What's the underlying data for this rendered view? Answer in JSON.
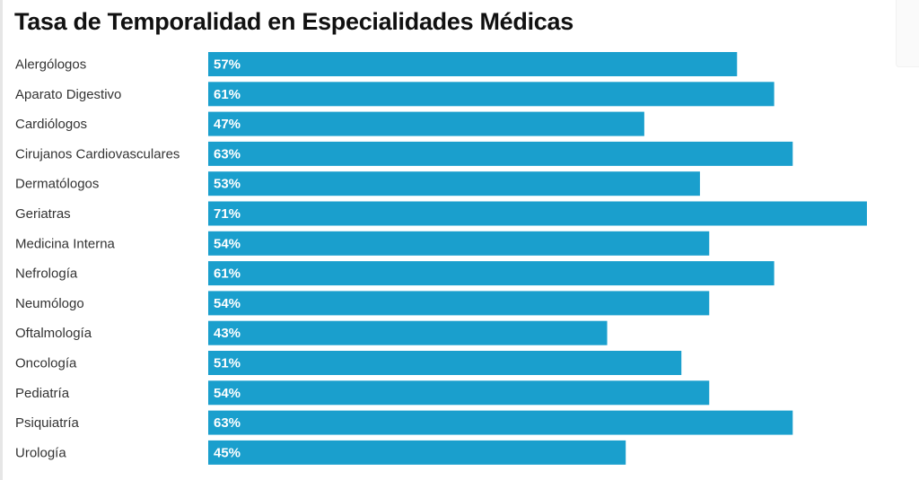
{
  "chart_data": {
    "type": "bar",
    "orientation": "horizontal",
    "title": "Tasa de Temporalidad en Especialidades Médicas",
    "xlabel": "",
    "ylabel": "",
    "xlim": [
      0,
      71
    ],
    "grid": false,
    "legend": "none",
    "bar_color": "#1a9fcd",
    "categories": [
      "Alergólogos",
      "Aparato Digestivo",
      "Cardiólogos",
      "Cirujanos Cardiovasculares",
      "Dermatólogos",
      "Geriatras",
      "Medicina Interna",
      "Nefrología",
      "Neumólogo",
      "Oftalmología",
      "Oncología",
      "Pediatría",
      "Psiquiatría",
      "Urología"
    ],
    "values": [
      57,
      61,
      47,
      63,
      53,
      71,
      54,
      61,
      54,
      43,
      51,
      54,
      63,
      45
    ],
    "value_labels": [
      "57%",
      "61%",
      "47%",
      "63%",
      "53%",
      "71%",
      "54%",
      "61%",
      "54%",
      "43%",
      "51%",
      "54%",
      "63%",
      "45%"
    ]
  }
}
